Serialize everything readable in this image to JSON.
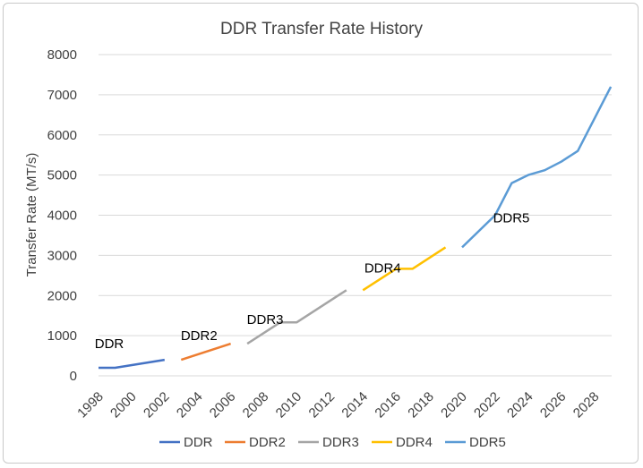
{
  "chart_data": {
    "type": "line",
    "title": "DDR Transfer Rate History",
    "xlabel": "",
    "ylabel": "Transfer Rate (MT/s)",
    "xlim": [
      1998,
      2029
    ],
    "ylim": [
      0,
      8000
    ],
    "grid": true,
    "legend_position": "bottom",
    "x_ticks": [
      "1998",
      "2000",
      "2002",
      "2004",
      "2006",
      "2008",
      "2010",
      "2012",
      "2014",
      "2016",
      "2018",
      "2020",
      "2022",
      "2024",
      "2026",
      "2028"
    ],
    "y_ticks": [
      "0",
      "1000",
      "2000",
      "3000",
      "4000",
      "5000",
      "6000",
      "7000",
      "8000"
    ],
    "series": [
      {
        "name": "DDR",
        "color": "#4472C4",
        "label": "DDR",
        "points": [
          [
            1998,
            200
          ],
          [
            1999,
            200
          ],
          [
            2002,
            400
          ]
        ]
      },
      {
        "name": "DDR2",
        "color": "#ED7D31",
        "label": "DDR2",
        "points": [
          [
            2003,
            400
          ],
          [
            2006,
            800
          ]
        ]
      },
      {
        "name": "DDR3",
        "color": "#A5A5A5",
        "label": "DDR3",
        "points": [
          [
            2007,
            800
          ],
          [
            2009,
            1333
          ],
          [
            2010,
            1333
          ],
          [
            2013,
            2133
          ]
        ]
      },
      {
        "name": "DDR4",
        "color": "#FFC000",
        "label": "DDR4",
        "points": [
          [
            2014,
            2133
          ],
          [
            2016,
            2666
          ],
          [
            2017,
            2666
          ],
          [
            2019,
            3200
          ]
        ]
      },
      {
        "name": "DDR5",
        "color": "#5B9BD5",
        "label": "DDR5",
        "points": [
          [
            2020,
            3200
          ],
          [
            2022,
            4000
          ],
          [
            2023,
            4800
          ],
          [
            2024,
            5000
          ],
          [
            2025,
            5120
          ],
          [
            2026,
            5333
          ],
          [
            2027,
            5600
          ],
          [
            2029,
            7200
          ]
        ]
      }
    ]
  }
}
